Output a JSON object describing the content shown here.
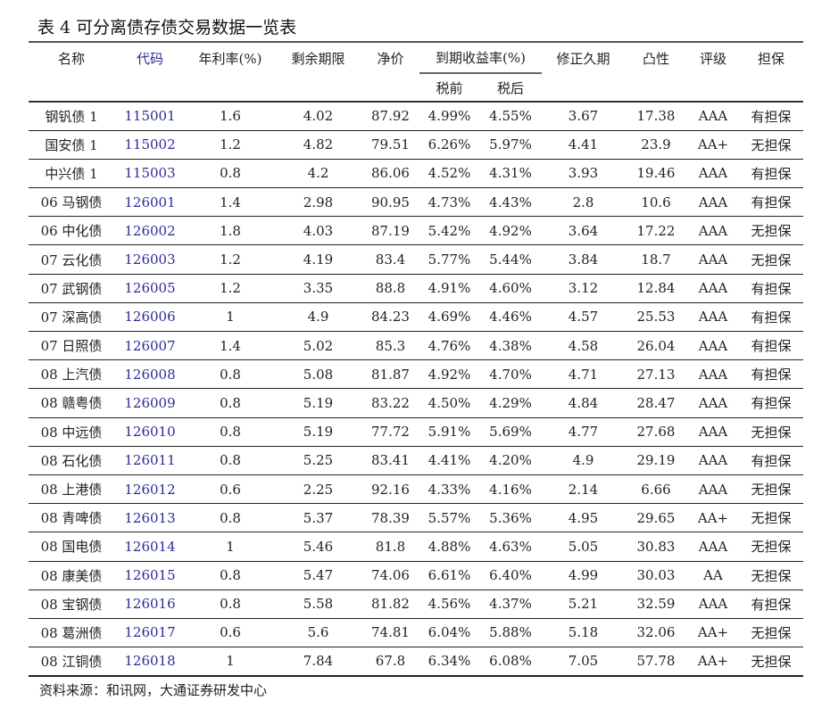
{
  "title": "表 4 可分离债存债交易数据一览表",
  "headers": {
    "name": "名称",
    "code": "代码",
    "coupon": "年利率(%)",
    "remaining": "剩余期限",
    "net_price": "净价",
    "ytm": "到期收益率(%)",
    "pre_tax": "税前",
    "after_tax": "税后",
    "mod_duration": "修正久期",
    "convexity": "凸性",
    "rating": "评级",
    "guarantee": "担保"
  },
  "colors": {
    "code": "#2b2b9b"
  },
  "rows": [
    [
      "钢钒债 1",
      "115001",
      "1.6",
      "4.02",
      "87.92",
      "4.99%",
      "4.55%",
      "3.67",
      "17.38",
      "AAA",
      "有担保"
    ],
    [
      "国安债 1",
      "115002",
      "1.2",
      "4.82",
      "79.51",
      "6.26%",
      "5.97%",
      "4.41",
      "23.9",
      "AA+",
      "无担保"
    ],
    [
      "中兴债 1",
      "115003",
      "0.8",
      "4.2",
      "86.06",
      "4.52%",
      "4.31%",
      "3.93",
      "19.46",
      "AAA",
      "有担保"
    ],
    [
      "06 马钢债",
      "126001",
      "1.4",
      "2.98",
      "90.95",
      "4.73%",
      "4.43%",
      "2.8",
      "10.6",
      "AAA",
      "有担保"
    ],
    [
      "06 中化债",
      "126002",
      "1.8",
      "4.03",
      "87.19",
      "5.42%",
      "4.92%",
      "3.64",
      "17.22",
      "AAA",
      "无担保"
    ],
    [
      "07 云化债",
      "126003",
      "1.2",
      "4.19",
      "83.4",
      "5.77%",
      "5.44%",
      "3.84",
      "18.7",
      "AAA",
      "无担保"
    ],
    [
      "07 武钢债",
      "126005",
      "1.2",
      "3.35",
      "88.8",
      "4.91%",
      "4.60%",
      "3.12",
      "12.84",
      "AAA",
      "有担保"
    ],
    [
      "07 深高债",
      "126006",
      "1",
      "4.9",
      "84.23",
      "4.69%",
      "4.46%",
      "4.57",
      "25.53",
      "AAA",
      "有担保"
    ],
    [
      "07 日照债",
      "126007",
      "1.4",
      "5.02",
      "85.3",
      "4.76%",
      "4.38%",
      "4.58",
      "26.04",
      "AAA",
      "有担保"
    ],
    [
      "08 上汽债",
      "126008",
      "0.8",
      "5.08",
      "81.87",
      "4.92%",
      "4.70%",
      "4.71",
      "27.13",
      "AAA",
      "有担保"
    ],
    [
      "08 赣粤债",
      "126009",
      "0.8",
      "5.19",
      "83.22",
      "4.50%",
      "4.29%",
      "4.84",
      "28.47",
      "AAA",
      "有担保"
    ],
    [
      "08 中远债",
      "126010",
      "0.8",
      "5.19",
      "77.72",
      "5.91%",
      "5.69%",
      "4.77",
      "27.68",
      "AAA",
      "无担保"
    ],
    [
      "08 石化债",
      "126011",
      "0.8",
      "5.25",
      "83.41",
      "4.41%",
      "4.20%",
      "4.9",
      "29.19",
      "AAA",
      "有担保"
    ],
    [
      "08 上港债",
      "126012",
      "0.6",
      "2.25",
      "92.16",
      "4.33%",
      "4.16%",
      "2.14",
      "6.66",
      "AAA",
      "无担保"
    ],
    [
      "08 青啤债",
      "126013",
      "0.8",
      "5.37",
      "78.39",
      "5.57%",
      "5.36%",
      "4.95",
      "29.65",
      "AA+",
      "无担保"
    ],
    [
      "08 国电债",
      "126014",
      "1",
      "5.46",
      "81.8",
      "4.88%",
      "4.63%",
      "5.05",
      "30.83",
      "AAA",
      "无担保"
    ],
    [
      "08 康美债",
      "126015",
      "0.8",
      "5.47",
      "74.06",
      "6.61%",
      "6.40%",
      "4.99",
      "30.03",
      "AA",
      "无担保"
    ],
    [
      "08 宝钢债",
      "126016",
      "0.8",
      "5.58",
      "81.82",
      "4.56%",
      "4.37%",
      "5.21",
      "32.59",
      "AAA",
      "有担保"
    ],
    [
      "08 葛洲债",
      "126017",
      "0.6",
      "5.6",
      "74.81",
      "6.04%",
      "5.88%",
      "5.18",
      "32.06",
      "AA+",
      "无担保"
    ],
    [
      "08 江铜债",
      "126018",
      "1",
      "7.84",
      "67.8",
      "6.34%",
      "6.08%",
      "7.05",
      "57.78",
      "AA+",
      "无担保"
    ]
  ],
  "source": "资料来源：和讯网，大通证券研发中心"
}
